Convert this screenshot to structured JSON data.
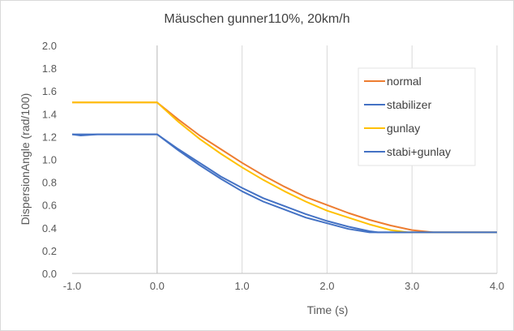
{
  "chart_data": {
    "type": "line",
    "title": "Mäuschen gunner110%, 20km/h",
    "xlabel": "Time (s)",
    "ylabel": "DispersionAngle (rad/100)",
    "xlim": [
      -1.0,
      4.0
    ],
    "ylim": [
      0.0,
      2.0
    ],
    "xticks": [
      -1.0,
      0.0,
      1.0,
      2.0,
      3.0,
      4.0
    ],
    "xtick_labels": [
      "-1.0",
      "0.0",
      "1.0",
      "2.0",
      "3.0",
      "4.0"
    ],
    "yticks": [
      0.0,
      0.2,
      0.4,
      0.6,
      0.8,
      1.0,
      1.2,
      1.4,
      1.6,
      1.8,
      2.0
    ],
    "ytick_labels": [
      "0.0",
      "0.2",
      "0.4",
      "0.6",
      "0.8",
      "1.0",
      "1.2",
      "1.4",
      "1.6",
      "1.8",
      "2.0"
    ],
    "grid": "vertical",
    "legend_position": "right",
    "series": [
      {
        "name": "normal",
        "color": "#ed7d31",
        "x": [
          -1.0,
          0.0,
          0.25,
          0.5,
          0.75,
          1.0,
          1.25,
          1.5,
          1.75,
          2.0,
          2.25,
          2.5,
          2.75,
          3.0,
          3.25,
          4.0
        ],
        "y": [
          1.5,
          1.5,
          1.35,
          1.21,
          1.09,
          0.97,
          0.86,
          0.76,
          0.67,
          0.6,
          0.53,
          0.47,
          0.42,
          0.38,
          0.36,
          0.36
        ]
      },
      {
        "name": "stabilizer",
        "color": "#4472c4",
        "x": [
          -1.0,
          -0.9,
          -0.7,
          0.0,
          0.25,
          0.5,
          0.75,
          1.0,
          1.25,
          1.5,
          1.75,
          2.0,
          2.25,
          2.5,
          2.6,
          2.75,
          4.0
        ],
        "y": [
          1.22,
          1.21,
          1.22,
          1.22,
          1.09,
          0.97,
          0.85,
          0.75,
          0.66,
          0.59,
          0.52,
          0.46,
          0.41,
          0.37,
          0.36,
          0.36,
          0.36
        ]
      },
      {
        "name": "gunlay",
        "color": "#ffc000",
        "x": [
          -1.0,
          0.0,
          0.25,
          0.5,
          0.75,
          1.0,
          1.25,
          1.5,
          1.75,
          2.0,
          2.25,
          2.5,
          2.75,
          2.95,
          4.0
        ],
        "y": [
          1.5,
          1.5,
          1.33,
          1.18,
          1.05,
          0.93,
          0.82,
          0.72,
          0.63,
          0.55,
          0.49,
          0.43,
          0.38,
          0.36,
          0.36
        ]
      },
      {
        "name": "stabi+gunlay",
        "color": "#4472c4",
        "x": [
          -1.0,
          0.0,
          0.25,
          0.5,
          0.75,
          1.0,
          1.25,
          1.5,
          1.75,
          2.0,
          2.25,
          2.5,
          2.6,
          4.0
        ],
        "y": [
          1.22,
          1.22,
          1.08,
          0.95,
          0.83,
          0.72,
          0.63,
          0.56,
          0.49,
          0.44,
          0.39,
          0.36,
          0.36,
          0.36
        ]
      }
    ]
  }
}
